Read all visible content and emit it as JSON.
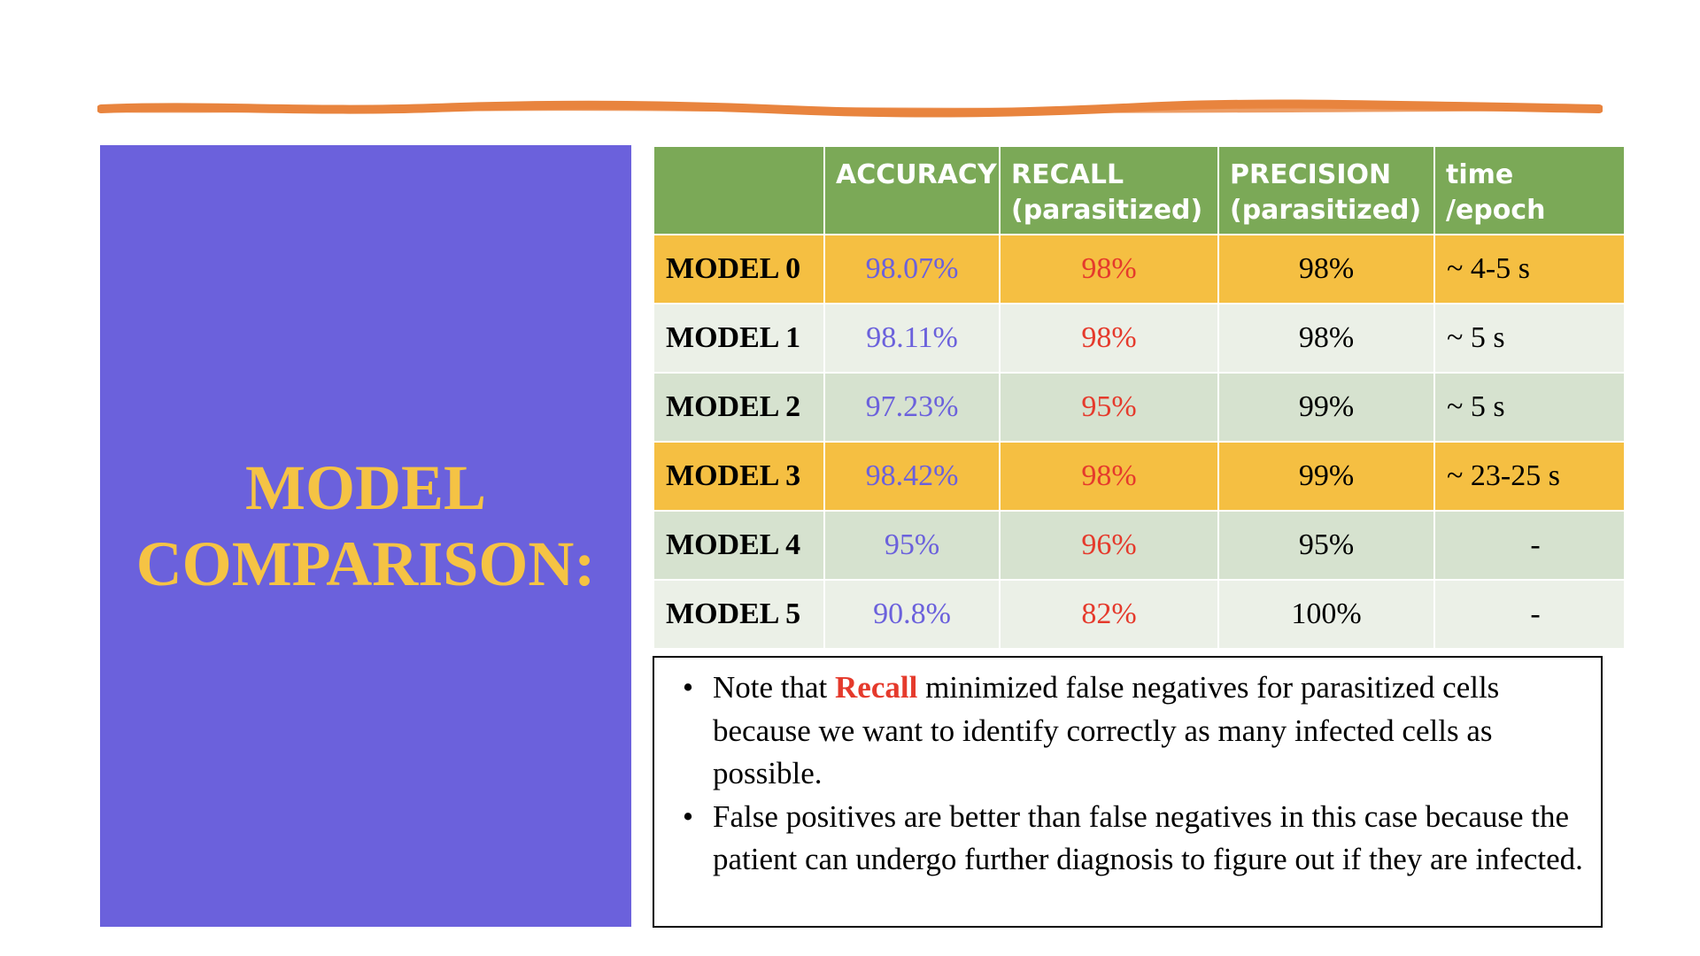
{
  "title": {
    "line1": "MODEL",
    "line2": "COMPARISON:"
  },
  "table": {
    "headers": {
      "model": "",
      "accuracy": "ACCURACY",
      "recall_line1": "RECALL",
      "recall_line2": "(parasitized)",
      "precision_line1": "PRECISION",
      "precision_line2": "(parasitized)",
      "time": "time /epoch"
    },
    "rows": [
      {
        "model": "MODEL 0",
        "accuracy": "98.07%",
        "recall": "98%",
        "precision": "98%",
        "time": "~ 4-5 s"
      },
      {
        "model": "MODEL 1",
        "accuracy": "98.11%",
        "recall": "98%",
        "precision": "98%",
        "time": "~ 5 s"
      },
      {
        "model": "MODEL 2",
        "accuracy": "97.23%",
        "recall": "95%",
        "precision": "99%",
        "time": "~ 5 s"
      },
      {
        "model": "MODEL 3",
        "accuracy": "98.42%",
        "recall": "98%",
        "precision": "99%",
        "time": "~ 23-25 s"
      },
      {
        "model": "MODEL 4",
        "accuracy": "95%",
        "recall": "96%",
        "precision": "95%",
        "time": "-"
      },
      {
        "model": "MODEL 5",
        "accuracy": "90.8%",
        "recall": "82%",
        "precision": "100%",
        "time": "-"
      }
    ]
  },
  "notes": [
    {
      "bullet": "•",
      "prefix": "Note that ",
      "highlight": "Recall",
      "suffix": " minimized false negatives for parasitized cells because we want to identify correctly as many infected cells as possible."
    },
    {
      "bullet": "•",
      "text": "False positives are better than false negatives in this case because the patient can undergo further diagnosis to figure out if they are infected."
    }
  ],
  "colors": {
    "title_panel": "#6b61dc",
    "title_text": "#f5c344",
    "header_bg": "#7ba957",
    "highlight_row": "#f5bf42",
    "light_row": "#ebf0e7",
    "mid_row": "#d6e2cf",
    "accuracy_text": "#6b61dc",
    "recall_text": "#e53a2c",
    "brush_stroke": "#e8843e"
  }
}
